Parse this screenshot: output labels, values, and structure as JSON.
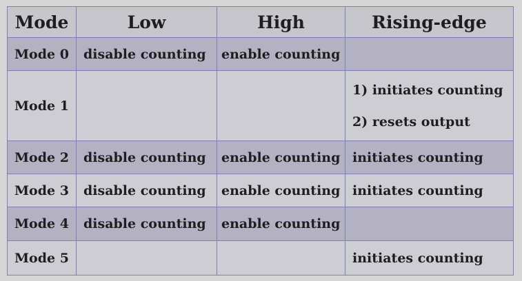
{
  "table": {
    "headers": [
      "Mode",
      "Low",
      "High",
      "Rising-edge"
    ],
    "rows": [
      {
        "mode": "Mode 0",
        "low": "disable counting",
        "high": "enable counting",
        "rising": []
      },
      {
        "mode": "Mode 1",
        "low": "",
        "high": "",
        "rising": [
          "1) initiates counting",
          "2) resets output"
        ]
      },
      {
        "mode": "Mode 2",
        "low": "disable counting",
        "high": "enable counting",
        "rising": [
          "initiates counting"
        ]
      },
      {
        "mode": "Mode 3",
        "low": "disable counting",
        "high": "enable counting",
        "rising": [
          "initiates counting"
        ]
      },
      {
        "mode": "Mode 4",
        "low": "disable counting",
        "high": "enable counting",
        "rising": []
      },
      {
        "mode": "Mode 5",
        "low": "",
        "high": "",
        "rising": [
          "initiates counting"
        ]
      }
    ]
  },
  "colors": {
    "background": "#d6d6d6",
    "header_bg": "#c6c6cc",
    "row_dark": "#b4b1c3",
    "row_light": "#cecdd4",
    "border": "#7f7fb8",
    "text": "#1e1e1e"
  }
}
